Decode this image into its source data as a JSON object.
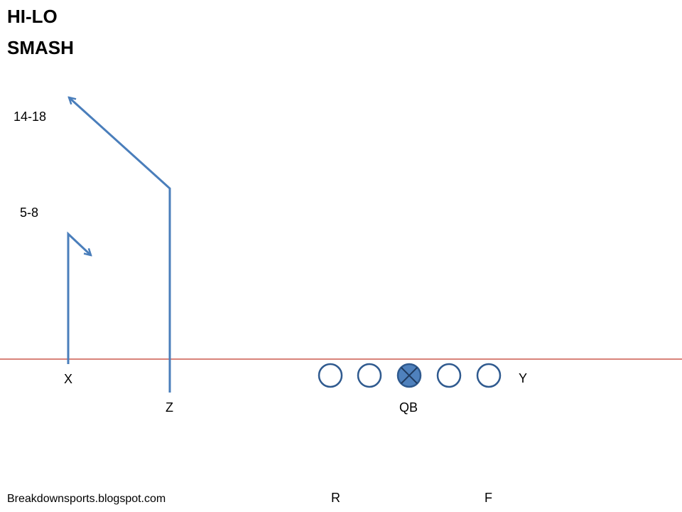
{
  "title": {
    "line1": "HI-LO",
    "line2": "SMASH"
  },
  "depth_labels": {
    "deep": "14-18",
    "short": "5-8"
  },
  "players": {
    "x": "X",
    "z": "Z",
    "qb": "QB",
    "y": "Y",
    "r": "R",
    "f": "F"
  },
  "watermark": "Breakdownsports.blogspot.com",
  "colors": {
    "route": "#4a7ebb",
    "scrimmage_line": "#c0392b",
    "lineman_stroke": "#2f5a8f",
    "center_fill": "#4f81bd"
  },
  "icons": {
    "lineman": "circle-icon",
    "center": "circle-x-icon"
  }
}
